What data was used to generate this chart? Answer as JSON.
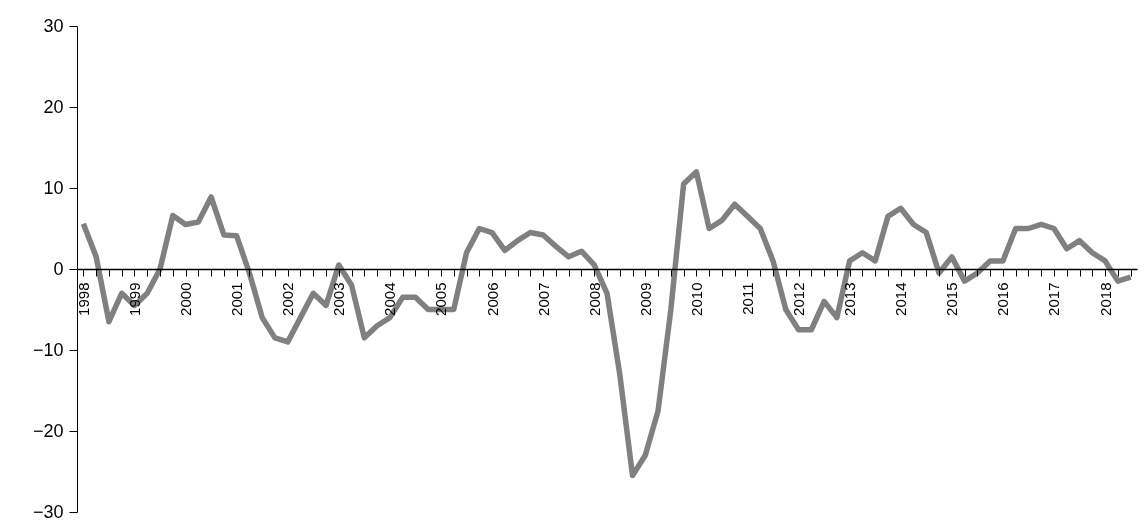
{
  "chart_data": {
    "type": "line",
    "categories": [
      "1998",
      null,
      null,
      null,
      "1999",
      null,
      null,
      null,
      "2000",
      null,
      null,
      null,
      "2001",
      null,
      null,
      null,
      "2002",
      null,
      null,
      null,
      "2003",
      null,
      null,
      null,
      "2004",
      null,
      null,
      null,
      "2005",
      null,
      null,
      null,
      "2006",
      null,
      null,
      null,
      "2007",
      null,
      null,
      null,
      "2008",
      null,
      null,
      null,
      "2009",
      null,
      null,
      null,
      "2010",
      null,
      null,
      null,
      "2011",
      null,
      null,
      null,
      "2012",
      null,
      null,
      null,
      "2013",
      null,
      null,
      null,
      "2014",
      null,
      null,
      null,
      "2015",
      null,
      null,
      null,
      "2016",
      null,
      null,
      null,
      "2017",
      null,
      null,
      null,
      "2018",
      null,
      null
    ],
    "values": [
      5.6,
      1.5,
      -6.5,
      -3,
      -4.5,
      -3,
      0,
      6.6,
      5.5,
      5.8,
      8.9,
      4.2,
      4.1,
      -0.5,
      -6,
      -8.5,
      -9,
      -6,
      -3,
      -4.5,
      0.5,
      -2,
      -8.5,
      -7,
      -6,
      -3.5,
      -3.5,
      -5,
      -5,
      -5,
      2,
      5,
      4.5,
      2.3,
      3.5,
      4.5,
      4.2,
      2.8,
      1.5,
      2.2,
      0.5,
      -3,
      -13,
      -25.5,
      -23,
      -17.5,
      -5,
      10.5,
      12,
      5,
      6,
      8,
      6.5,
      5,
      1,
      -5,
      -7.5,
      -7.5,
      -4,
      -6,
      1,
      2,
      1,
      6.5,
      7.5,
      5.5,
      4.5,
      -0.5,
      1.5,
      -1.5,
      -0.5,
      1,
      1,
      5,
      5,
      5.5,
      5,
      2.5,
      3.5,
      2,
      1,
      -1.5,
      -1
    ],
    "color": "#808080",
    "ylim": [
      -30,
      30
    ],
    "yticks": [
      -30,
      -20,
      -10,
      0,
      10,
      20,
      30
    ],
    "grid": false,
    "marker": "none",
    "line_style": "solid"
  }
}
